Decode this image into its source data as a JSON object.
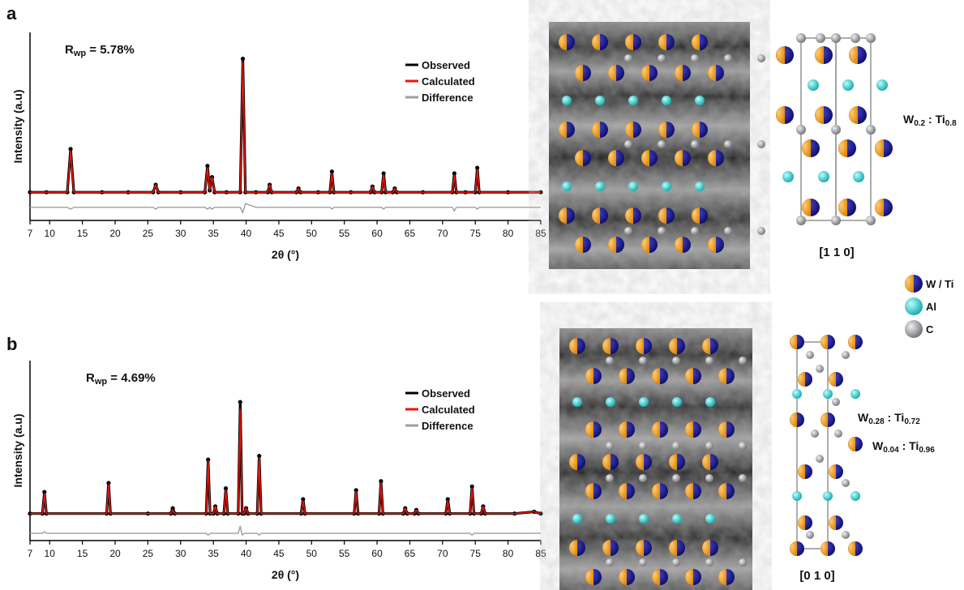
{
  "panels": [
    "a",
    "b"
  ],
  "chart_data": [
    {
      "type": "line",
      "panel": "a",
      "ylabel": "Intensity (a.u)",
      "xlabel": "2θ (°)",
      "annotation": [
        "R",
        "wp",
        " = 5.78%"
      ],
      "xlim": [
        7,
        85
      ],
      "ylim": [
        0,
        100
      ],
      "xticks": [
        7,
        10,
        15,
        20,
        25,
        30,
        35,
        40,
        45,
        50,
        55,
        60,
        65,
        70,
        75,
        80,
        85
      ],
      "x": [
        7,
        9.5,
        12.7,
        13.2,
        13.7,
        18,
        22,
        25.8,
        26.2,
        26.6,
        30,
        33.7,
        34.1,
        34.45,
        34.8,
        35.2,
        37,
        39.1,
        39.5,
        39.9,
        41.5,
        43.3,
        43.6,
        43.9,
        47.7,
        48,
        48.3,
        51,
        52.8,
        53.1,
        53.4,
        56,
        59,
        59.3,
        59.6,
        60.7,
        61,
        61.3,
        62.4,
        62.7,
        63,
        67,
        71.5,
        71.8,
        72.1,
        73.5,
        75,
        75.3,
        75.6,
        80,
        85
      ],
      "series": [
        {
          "name": "Observed",
          "color": "#000000",
          "values": [
            15,
            15,
            15,
            38,
            15,
            15,
            15,
            15,
            19,
            15,
            15,
            15,
            29,
            16,
            23,
            15,
            15,
            15,
            86,
            15,
            15,
            15,
            19,
            15,
            15,
            17,
            15,
            15,
            15,
            26,
            15,
            15,
            15,
            18,
            15,
            15,
            25,
            15,
            15,
            17,
            15,
            15,
            15,
            25,
            15,
            15,
            15,
            28,
            15,
            15,
            15
          ]
        },
        {
          "name": "Calculated",
          "color": "#e8140c",
          "values": [
            15,
            15,
            15,
            37,
            15,
            15,
            15,
            15,
            19,
            15,
            15,
            15,
            28,
            16,
            23,
            15,
            15,
            15,
            84,
            15,
            15,
            15,
            19,
            15,
            15,
            17,
            15,
            15,
            15,
            25,
            15,
            15,
            15,
            18,
            15,
            15,
            24,
            15,
            15,
            17,
            15,
            15,
            15,
            24,
            15,
            15,
            15,
            27,
            15,
            15,
            15
          ]
        },
        {
          "name": "Difference",
          "color": "#9e9e9e",
          "values": [
            7,
            7,
            7,
            6,
            7,
            7,
            7,
            7,
            6,
            7,
            7,
            7,
            6,
            7,
            6,
            7,
            7,
            7,
            4,
            9,
            7,
            7,
            7,
            7,
            7,
            7,
            7,
            7,
            7,
            6,
            7,
            7,
            7,
            7,
            7,
            7,
            6,
            7,
            7,
            7,
            7,
            7,
            7,
            5,
            7,
            7,
            7,
            6,
            7,
            7,
            7
          ]
        }
      ]
    },
    {
      "type": "line",
      "panel": "b",
      "ylabel": "Intensity (a.u)",
      "xlabel": "2θ (°)",
      "annotation": [
        "R",
        "wp",
        " = 4.69%"
      ],
      "xlim": [
        7,
        85
      ],
      "ylim": [
        0,
        100
      ],
      "xticks": [
        7,
        10,
        15,
        20,
        25,
        30,
        35,
        40,
        45,
        50,
        55,
        60,
        65,
        70,
        75,
        80,
        85
      ],
      "x": [
        7,
        8.9,
        9.2,
        9.5,
        18.7,
        19,
        19.3,
        25,
        28.5,
        28.8,
        29.1,
        33.9,
        34.2,
        34.5,
        35,
        35.3,
        35.6,
        36.6,
        36.9,
        37.2,
        38.8,
        39.1,
        39.4,
        39.7,
        40,
        40.3,
        41.7,
        42,
        42.3,
        48.4,
        48.7,
        49,
        56.5,
        56.8,
        57.1,
        60.3,
        60.6,
        60.9,
        64,
        64.3,
        64.6,
        65.7,
        66,
        66.3,
        70.5,
        70.8,
        71.1,
        74.2,
        74.5,
        74.8,
        75.9,
        76.2,
        76.5,
        81,
        84,
        85
      ],
      "series": [
        {
          "name": "Observed",
          "color": "#000000",
          "values": [
            15,
            15,
            27,
            15,
            15,
            32,
            15,
            15,
            15,
            18,
            15,
            15,
            45,
            15,
            15,
            19,
            15,
            15,
            29,
            15,
            15,
            77,
            15,
            15,
            18,
            15,
            15,
            47,
            15,
            15,
            23,
            15,
            15,
            28,
            15,
            15,
            33,
            15,
            15,
            18,
            15,
            15,
            17,
            15,
            15,
            23,
            15,
            15,
            30,
            15,
            15,
            19,
            15,
            15,
            16,
            15
          ]
        },
        {
          "name": "Calculated",
          "color": "#e8140c",
          "values": [
            15,
            15,
            26,
            15,
            15,
            31,
            15,
            15,
            15,
            17,
            15,
            15,
            44,
            15,
            15,
            19,
            15,
            15,
            28,
            15,
            15,
            73,
            15,
            15,
            18,
            15,
            15,
            46,
            15,
            15,
            22,
            15,
            15,
            27,
            15,
            15,
            32,
            15,
            15,
            18,
            15,
            15,
            17,
            15,
            15,
            22,
            15,
            15,
            29,
            15,
            15,
            19,
            15,
            15,
            16,
            15
          ]
        },
        {
          "name": "Difference",
          "color": "#9e9e9e",
          "values": [
            4,
            4,
            5,
            4,
            4,
            4,
            4,
            4,
            4,
            4,
            4,
            4,
            3,
            4,
            4,
            4,
            4,
            4,
            4,
            4,
            4,
            8,
            3,
            4,
            4,
            4,
            4,
            3,
            4,
            4,
            4,
            4,
            4,
            4,
            4,
            4,
            4,
            4,
            4,
            4,
            4,
            4,
            4,
            4,
            4,
            4,
            4,
            4,
            3,
            4,
            4,
            4,
            4,
            4,
            4,
            4
          ]
        }
      ]
    }
  ],
  "structures": [
    {
      "direction": "[1 1 0]",
      "compositions": [
        [
          "W",
          "0.2",
          " : Ti",
          "0.8"
        ]
      ]
    },
    {
      "direction": "[0 1 0]",
      "compositions": [
        [
          "W",
          "0.28",
          " : Ti",
          "0.72"
        ],
        [
          "W",
          "0.04",
          " : Ti",
          "0.96"
        ]
      ]
    }
  ],
  "atom_legend": [
    "W / Ti",
    "Al",
    "C"
  ]
}
